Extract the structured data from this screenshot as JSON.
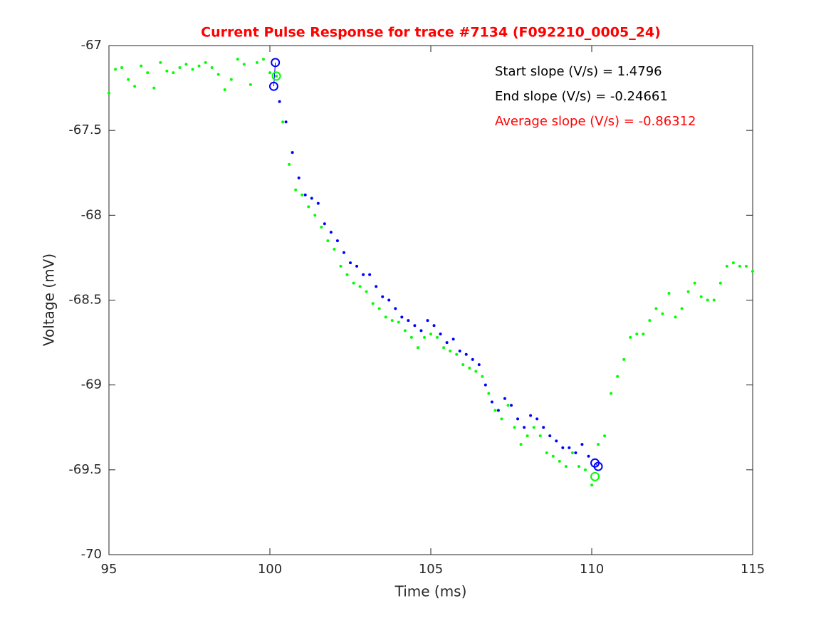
{
  "chart_data": {
    "type": "scatter",
    "title": "Current Pulse Response for trace #7134 (F092210_0005_24)",
    "title_color": "#ff0000",
    "x_label": "Time (ms)",
    "y_label": "Voltage (mV)",
    "xlim": [
      95,
      115
    ],
    "xticks": [
      95,
      100,
      105,
      110,
      115
    ],
    "ylim": [
      -70,
      -67
    ],
    "yticks": [
      -70,
      -69.5,
      -69,
      -68.5,
      -68,
      -67.5,
      -67
    ],
    "annotations": [
      {
        "text": "Start slope (V/s) = 1.4796",
        "color": "#000000"
      },
      {
        "text": "End slope (V/s) = -0.24661",
        "color": "#000000"
      },
      {
        "text": "Average slope (V/s) = -0.86312",
        "color": "#ff0000"
      }
    ],
    "series": [
      {
        "color": "#00ff00",
        "marker": "dot",
        "x": [
          95.0,
          95.2,
          95.4,
          95.6,
          95.8,
          96.0,
          96.2,
          96.4,
          96.6,
          96.8,
          97.0,
          97.2,
          97.4,
          97.6,
          97.8,
          98.0,
          98.2,
          98.4,
          98.6,
          98.8,
          99.0,
          99.2,
          99.4,
          99.6,
          99.8,
          100.0,
          100.2,
          100.4,
          100.6,
          100.8,
          101.0,
          101.2,
          101.4,
          101.6,
          101.8,
          102.0,
          102.2,
          102.4,
          102.6,
          102.8,
          103.0,
          103.2,
          103.4,
          103.6,
          103.8,
          104.0,
          104.2,
          104.4,
          104.6,
          104.8,
          105.0,
          105.2,
          105.4,
          105.6,
          105.8,
          106.0,
          106.2,
          106.4,
          106.6,
          106.8,
          107.0,
          107.2,
          107.4,
          107.6,
          107.8,
          108.0,
          108.2,
          108.4,
          108.6,
          108.8,
          109.0,
          109.2,
          109.4,
          109.6,
          109.8,
          110.0,
          110.2,
          110.4,
          110.6,
          110.8,
          111.0,
          111.2,
          111.4,
          111.6,
          111.8,
          112.0,
          112.2,
          112.4,
          112.6,
          112.8,
          113.0,
          113.2,
          113.4,
          113.6,
          113.8,
          114.0,
          114.2,
          114.4,
          114.6,
          114.8,
          115.0
        ],
        "values": [
          -67.28,
          -67.14,
          -67.13,
          -67.2,
          -67.24,
          -67.12,
          -67.16,
          -67.25,
          -67.1,
          -67.15,
          -67.16,
          -67.13,
          -67.11,
          -67.14,
          -67.12,
          -67.1,
          -67.13,
          -67.17,
          -67.26,
          -67.2,
          -67.08,
          -67.11,
          -67.23,
          -67.1,
          -67.08,
          -67.16,
          -67.18,
          -67.45,
          -67.7,
          -67.85,
          -67.88,
          -67.95,
          -68.0,
          -68.07,
          -68.15,
          -68.2,
          -68.3,
          -68.35,
          -68.4,
          -68.42,
          -68.45,
          -68.52,
          -68.55,
          -68.6,
          -68.62,
          -68.63,
          -68.68,
          -68.72,
          -68.78,
          -68.72,
          -68.7,
          -68.72,
          -68.78,
          -68.8,
          -68.82,
          -68.88,
          -68.9,
          -68.92,
          -68.95,
          -69.05,
          -69.15,
          -69.2,
          -69.12,
          -69.25,
          -69.35,
          -69.3,
          -69.25,
          -69.3,
          -69.4,
          -69.42,
          -69.45,
          -69.48,
          -69.4,
          -69.48,
          -69.5,
          -69.59,
          -69.35,
          -69.3,
          -69.05,
          -68.95,
          -68.85,
          -68.72,
          -68.7,
          -68.7,
          -68.62,
          -68.55,
          -68.58,
          -68.46,
          -68.6,
          -68.55,
          -68.45,
          -68.4,
          -68.48,
          -68.5,
          -68.5,
          -68.4,
          -68.3,
          -68.28,
          -68.3,
          -68.3,
          -68.33
        ]
      },
      {
        "color": "#0000ff",
        "marker": "dot",
        "x": [
          100.3,
          100.5,
          100.7,
          100.9,
          101.1,
          101.3,
          101.5,
          101.7,
          101.9,
          102.1,
          102.3,
          102.5,
          102.7,
          102.9,
          103.1,
          103.3,
          103.5,
          103.7,
          103.9,
          104.1,
          104.3,
          104.5,
          104.7,
          104.9,
          105.1,
          105.3,
          105.5,
          105.7,
          105.9,
          106.1,
          106.3,
          106.5,
          106.7,
          106.9,
          107.1,
          107.3,
          107.5,
          107.7,
          107.9,
          108.1,
          108.3,
          108.5,
          108.7,
          108.9,
          109.1,
          109.3,
          109.5,
          109.7,
          109.9
        ],
        "values": [
          -67.33,
          -67.45,
          -67.63,
          -67.78,
          -67.88,
          -67.9,
          -67.93,
          -68.05,
          -68.1,
          -68.15,
          -68.22,
          -68.28,
          -68.3,
          -68.35,
          -68.35,
          -68.42,
          -68.48,
          -68.5,
          -68.55,
          -68.6,
          -68.62,
          -68.65,
          -68.68,
          -68.62,
          -68.65,
          -68.7,
          -68.75,
          -68.73,
          -68.8,
          -68.82,
          -68.85,
          -68.88,
          -69.0,
          -69.1,
          -69.15,
          -69.08,
          -69.12,
          -69.2,
          -69.25,
          -69.18,
          -69.2,
          -69.25,
          -69.3,
          -69.33,
          -69.37,
          -69.37,
          -69.4,
          -69.35,
          -69.42
        ]
      },
      {
        "color": "#0000ff",
        "marker": "circle",
        "connect": true,
        "x": [
          100.12,
          100.17
        ],
        "values": [
          -67.24,
          -67.1
        ]
      },
      {
        "color": "#0000ff",
        "marker": "circle",
        "connect": true,
        "x": [
          110.1,
          110.2
        ],
        "values": [
          -69.46,
          -69.48
        ]
      },
      {
        "color": "#00ff00",
        "marker": "circle",
        "x": [
          100.2,
          110.1
        ],
        "values": [
          -67.18,
          -69.54
        ]
      }
    ]
  }
}
